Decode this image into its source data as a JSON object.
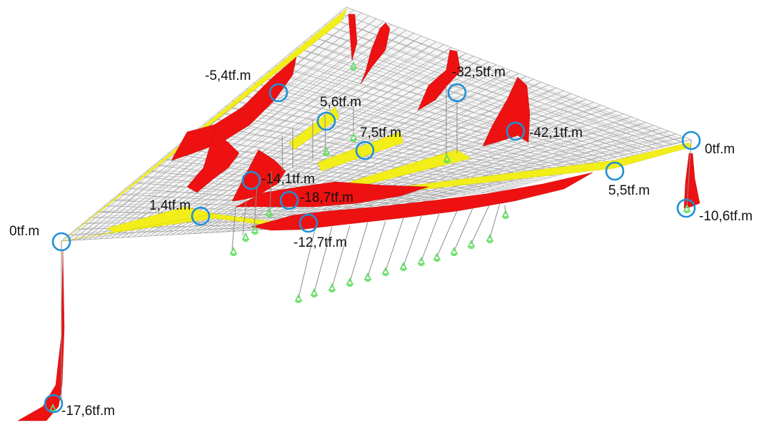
{
  "colors": {
    "background": "#ffffff",
    "mesh": "#9a9a9a",
    "negative_moment": "#ee1111",
    "positive_moment": "#f2ee1a",
    "marker": "#1e8fd6",
    "support": "#66dd66"
  },
  "annotations": [
    {
      "id": "m1",
      "text": "-5,4tf.m"
    },
    {
      "id": "m2",
      "text": "5,6tf.m"
    },
    {
      "id": "m3",
      "text": "-32,5tf.m"
    },
    {
      "id": "m4",
      "text": "7,5tf.m"
    },
    {
      "id": "m5",
      "text": "-42,1tf.m"
    },
    {
      "id": "m6",
      "text": "0tf.m"
    },
    {
      "id": "m7",
      "text": "-14,1tf.m"
    },
    {
      "id": "m8",
      "text": "-18,7tf.m"
    },
    {
      "id": "m9",
      "text": "5,5tf.m"
    },
    {
      "id": "m10",
      "text": "1,4tf.m"
    },
    {
      "id": "m11",
      "text": "-10,6tf.m"
    },
    {
      "id": "m12",
      "text": "0tf.m"
    },
    {
      "id": "m13",
      "text": "-12,7tf.m"
    },
    {
      "id": "m14",
      "text": "-17,6tf.m"
    }
  ]
}
